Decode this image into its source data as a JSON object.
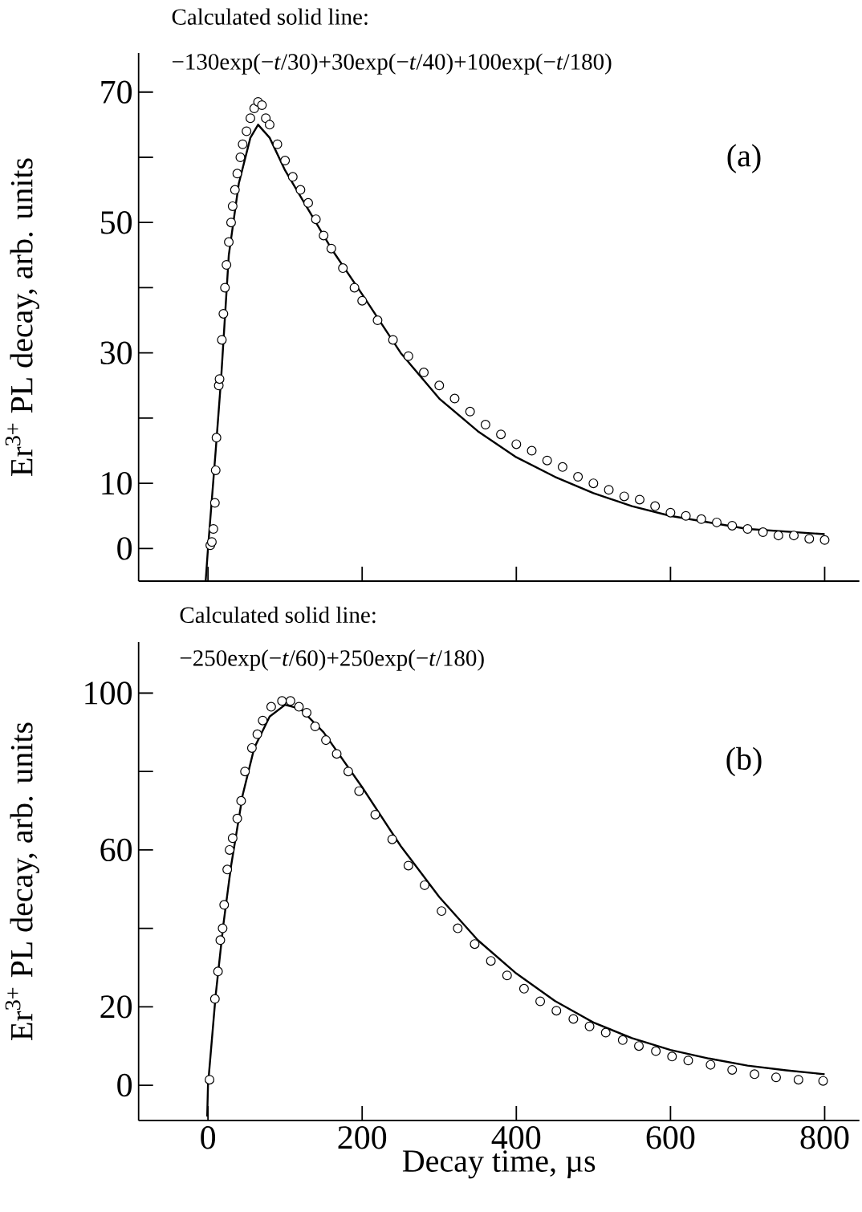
{
  "chart_data": [
    {
      "type": "scatter",
      "ylabel": "Er$^{3+}$ PL decay, arb. units",
      "annotations": [
        "Calculated solid line:",
        "−130exp(−*t*/30)+30exp(−*t*/40)+100exp(−*t*/180)",
        "(a)"
      ],
      "xlim": [
        -90,
        845
      ],
      "ylim": [
        -5,
        76
      ],
      "xticks": [
        0,
        200,
        400,
        600,
        800
      ],
      "yticks": [
        0,
        10,
        {
          "value": 20,
          "label": null
        },
        30,
        {
          "value": 40,
          "label": null
        },
        50,
        {
          "value": 60,
          "label": null
        },
        70
      ],
      "tick_labels": "y",
      "series": [
        {
          "type": "scatter",
          "marker": "circle",
          "color": "#000000",
          "x": [
            3,
            5,
            7,
            9,
            10,
            11,
            14,
            15,
            18,
            20,
            22,
            24,
            27,
            30,
            32,
            35,
            38,
            42,
            45,
            50,
            55,
            60,
            65,
            70,
            75,
            80,
            90,
            100,
            110,
            120,
            130,
            140,
            150,
            160,
            175,
            190,
            200,
            220,
            240,
            260,
            280,
            300,
            320,
            340,
            360,
            380,
            400,
            420,
            440,
            460,
            480,
            500,
            520,
            540,
            560,
            580,
            600,
            620,
            640,
            660,
            680,
            700,
            720,
            740,
            760,
            780,
            800
          ],
          "values": [
            0.5,
            1,
            3,
            7,
            12,
            17,
            25,
            26,
            32,
            36,
            40,
            43.5,
            47,
            50,
            52.5,
            55,
            57.5,
            60,
            62,
            64,
            66,
            67.5,
            68.5,
            68,
            66,
            65,
            62,
            59.5,
            57,
            55,
            53,
            50.5,
            48,
            46,
            43,
            40,
            38,
            35,
            32,
            29.5,
            27,
            25,
            23,
            21,
            19,
            17.5,
            16,
            15,
            13.5,
            12.5,
            11,
            10,
            9,
            8,
            7.5,
            6.5,
            5.5,
            5,
            4.5,
            4,
            3.5,
            3,
            2.5,
            2,
            2,
            1.5,
            1.3
          ]
        },
        {
          "type": "line",
          "marker": "none",
          "color": "#000000",
          "x": [
            -3,
            0,
            10,
            17,
            27,
            40,
            55,
            65,
            80,
            100,
            130,
            160,
            200,
            250,
            300,
            350,
            400,
            450,
            500,
            550,
            600,
            700,
            800
          ],
          "values": [
            -5,
            0,
            15,
            26,
            45,
            56,
            63,
            65,
            63,
            58,
            52,
            46,
            39,
            30,
            23,
            18,
            14,
            11,
            8.5,
            6.5,
            5,
            3,
            2.2
          ]
        }
      ]
    },
    {
      "type": "scatter",
      "xlabel": "Decay time, µs",
      "ylabel": "Er$^{3+}$ PL decay, arb. units",
      "annotations": [
        "Calculated solid line:",
        "−250exp(−*t*/60)+250exp(−*t*/180)",
        "(b)"
      ],
      "xlim": [
        -90,
        845
      ],
      "ylim": [
        -9,
        113
      ],
      "xticks": [
        0,
        200,
        400,
        600,
        800
      ],
      "yticks": [
        0,
        20,
        {
          "value": 40,
          "label": null
        },
        60,
        {
          "value": 80,
          "label": null
        },
        100
      ],
      "series": [
        {
          "type": "scatter",
          "marker": "circle",
          "color": "#000000",
          "x": [
            2,
            9,
            13,
            16,
            19,
            21,
            25,
            28,
            32,
            38,
            43,
            48,
            57,
            64,
            71,
            82,
            96,
            107,
            118,
            128,
            139,
            153,
            167,
            182,
            196,
            217,
            239,
            260,
            281,
            303,
            324,
            346,
            367,
            388,
            410,
            431,
            452,
            474,
            495,
            516,
            538,
            559,
            581,
            602,
            623,
            652,
            680,
            709,
            737,
            766,
            798
          ],
          "values": [
            1.4,
            22,
            29,
            37,
            40,
            46,
            55,
            60,
            63,
            68,
            72.5,
            80,
            86,
            89.5,
            93,
            96.5,
            98,
            98,
            96.5,
            95,
            91.5,
            88,
            84.5,
            80,
            75,
            69,
            62.7,
            56,
            51,
            44.4,
            40,
            36,
            31.7,
            28,
            24.6,
            21.4,
            19,
            16.9,
            15,
            13.4,
            11.5,
            10,
            8.7,
            7.3,
            6.3,
            5.2,
            3.9,
            2.8,
            2,
            1.4,
            1.1
          ]
        },
        {
          "type": "line",
          "marker": "none",
          "color": "#000000",
          "x": [
            -1,
            0,
            10,
            20,
            30,
            45,
            60,
            80,
            100,
            120,
            150,
            200,
            250,
            300,
            350,
            400,
            450,
            500,
            550,
            600,
            650,
            700,
            750,
            800
          ],
          "values": [
            -8,
            0,
            23,
            41,
            56,
            74,
            86,
            94,
            97,
            96,
            90,
            76,
            61,
            48,
            37,
            28.5,
            21.5,
            16,
            12,
            9,
            6.8,
            5,
            3.8,
            2.8
          ]
        }
      ]
    }
  ]
}
